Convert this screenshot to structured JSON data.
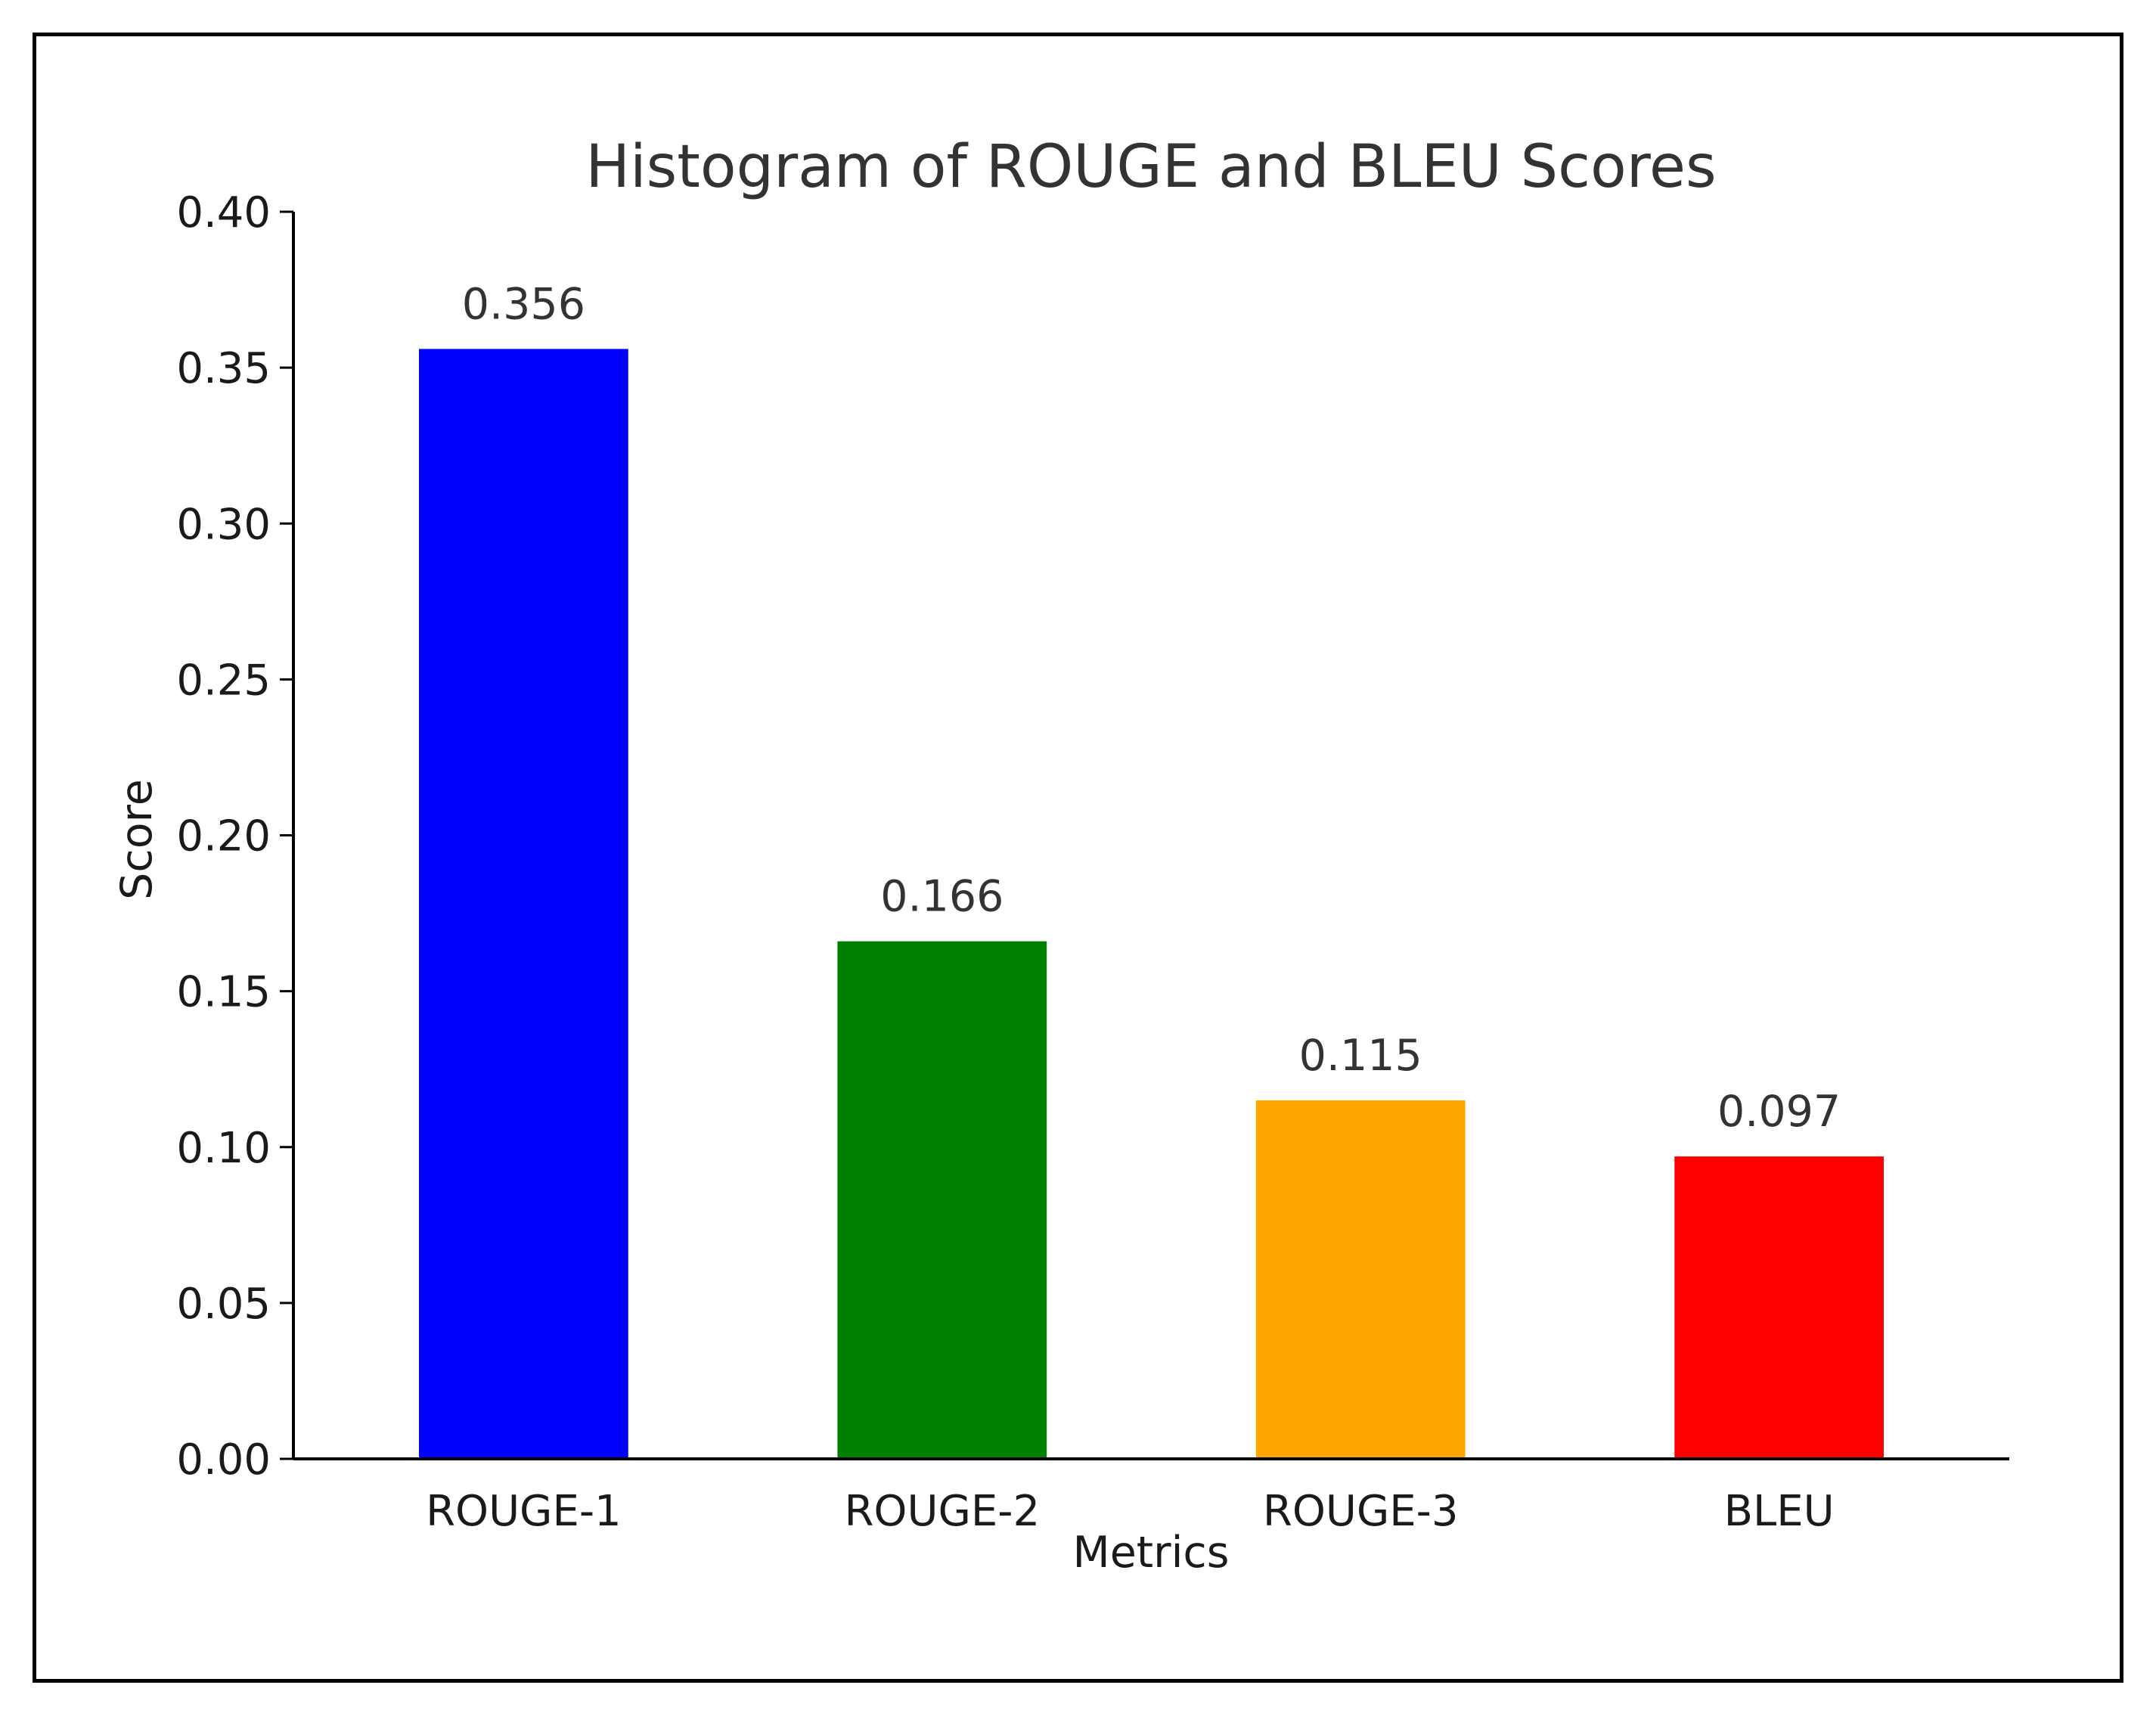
{
  "chart_data": {
    "type": "bar",
    "title": "Histogram of ROUGE and BLEU Scores",
    "xlabel": "Metrics",
    "ylabel": "Score",
    "categories": [
      "ROUGE-1",
      "ROUGE-2",
      "ROUGE-3",
      "BLEU"
    ],
    "values": [
      0.356,
      0.166,
      0.115,
      0.097
    ],
    "value_labels": [
      "0.356",
      "0.166",
      "0.115",
      "0.097"
    ],
    "colors": [
      "#0000ff",
      "#008000",
      "#ffa500",
      "#ff0000"
    ],
    "ylim": [
      0,
      0.4
    ],
    "yticks": [
      0.0,
      0.05,
      0.1,
      0.15,
      0.2,
      0.25,
      0.3,
      0.35,
      0.4
    ],
    "ytick_labels": [
      "0.00",
      "0.05",
      "0.10",
      "0.15",
      "0.20",
      "0.25",
      "0.30",
      "0.35",
      "0.40"
    ],
    "grid": false,
    "legend": "none"
  }
}
